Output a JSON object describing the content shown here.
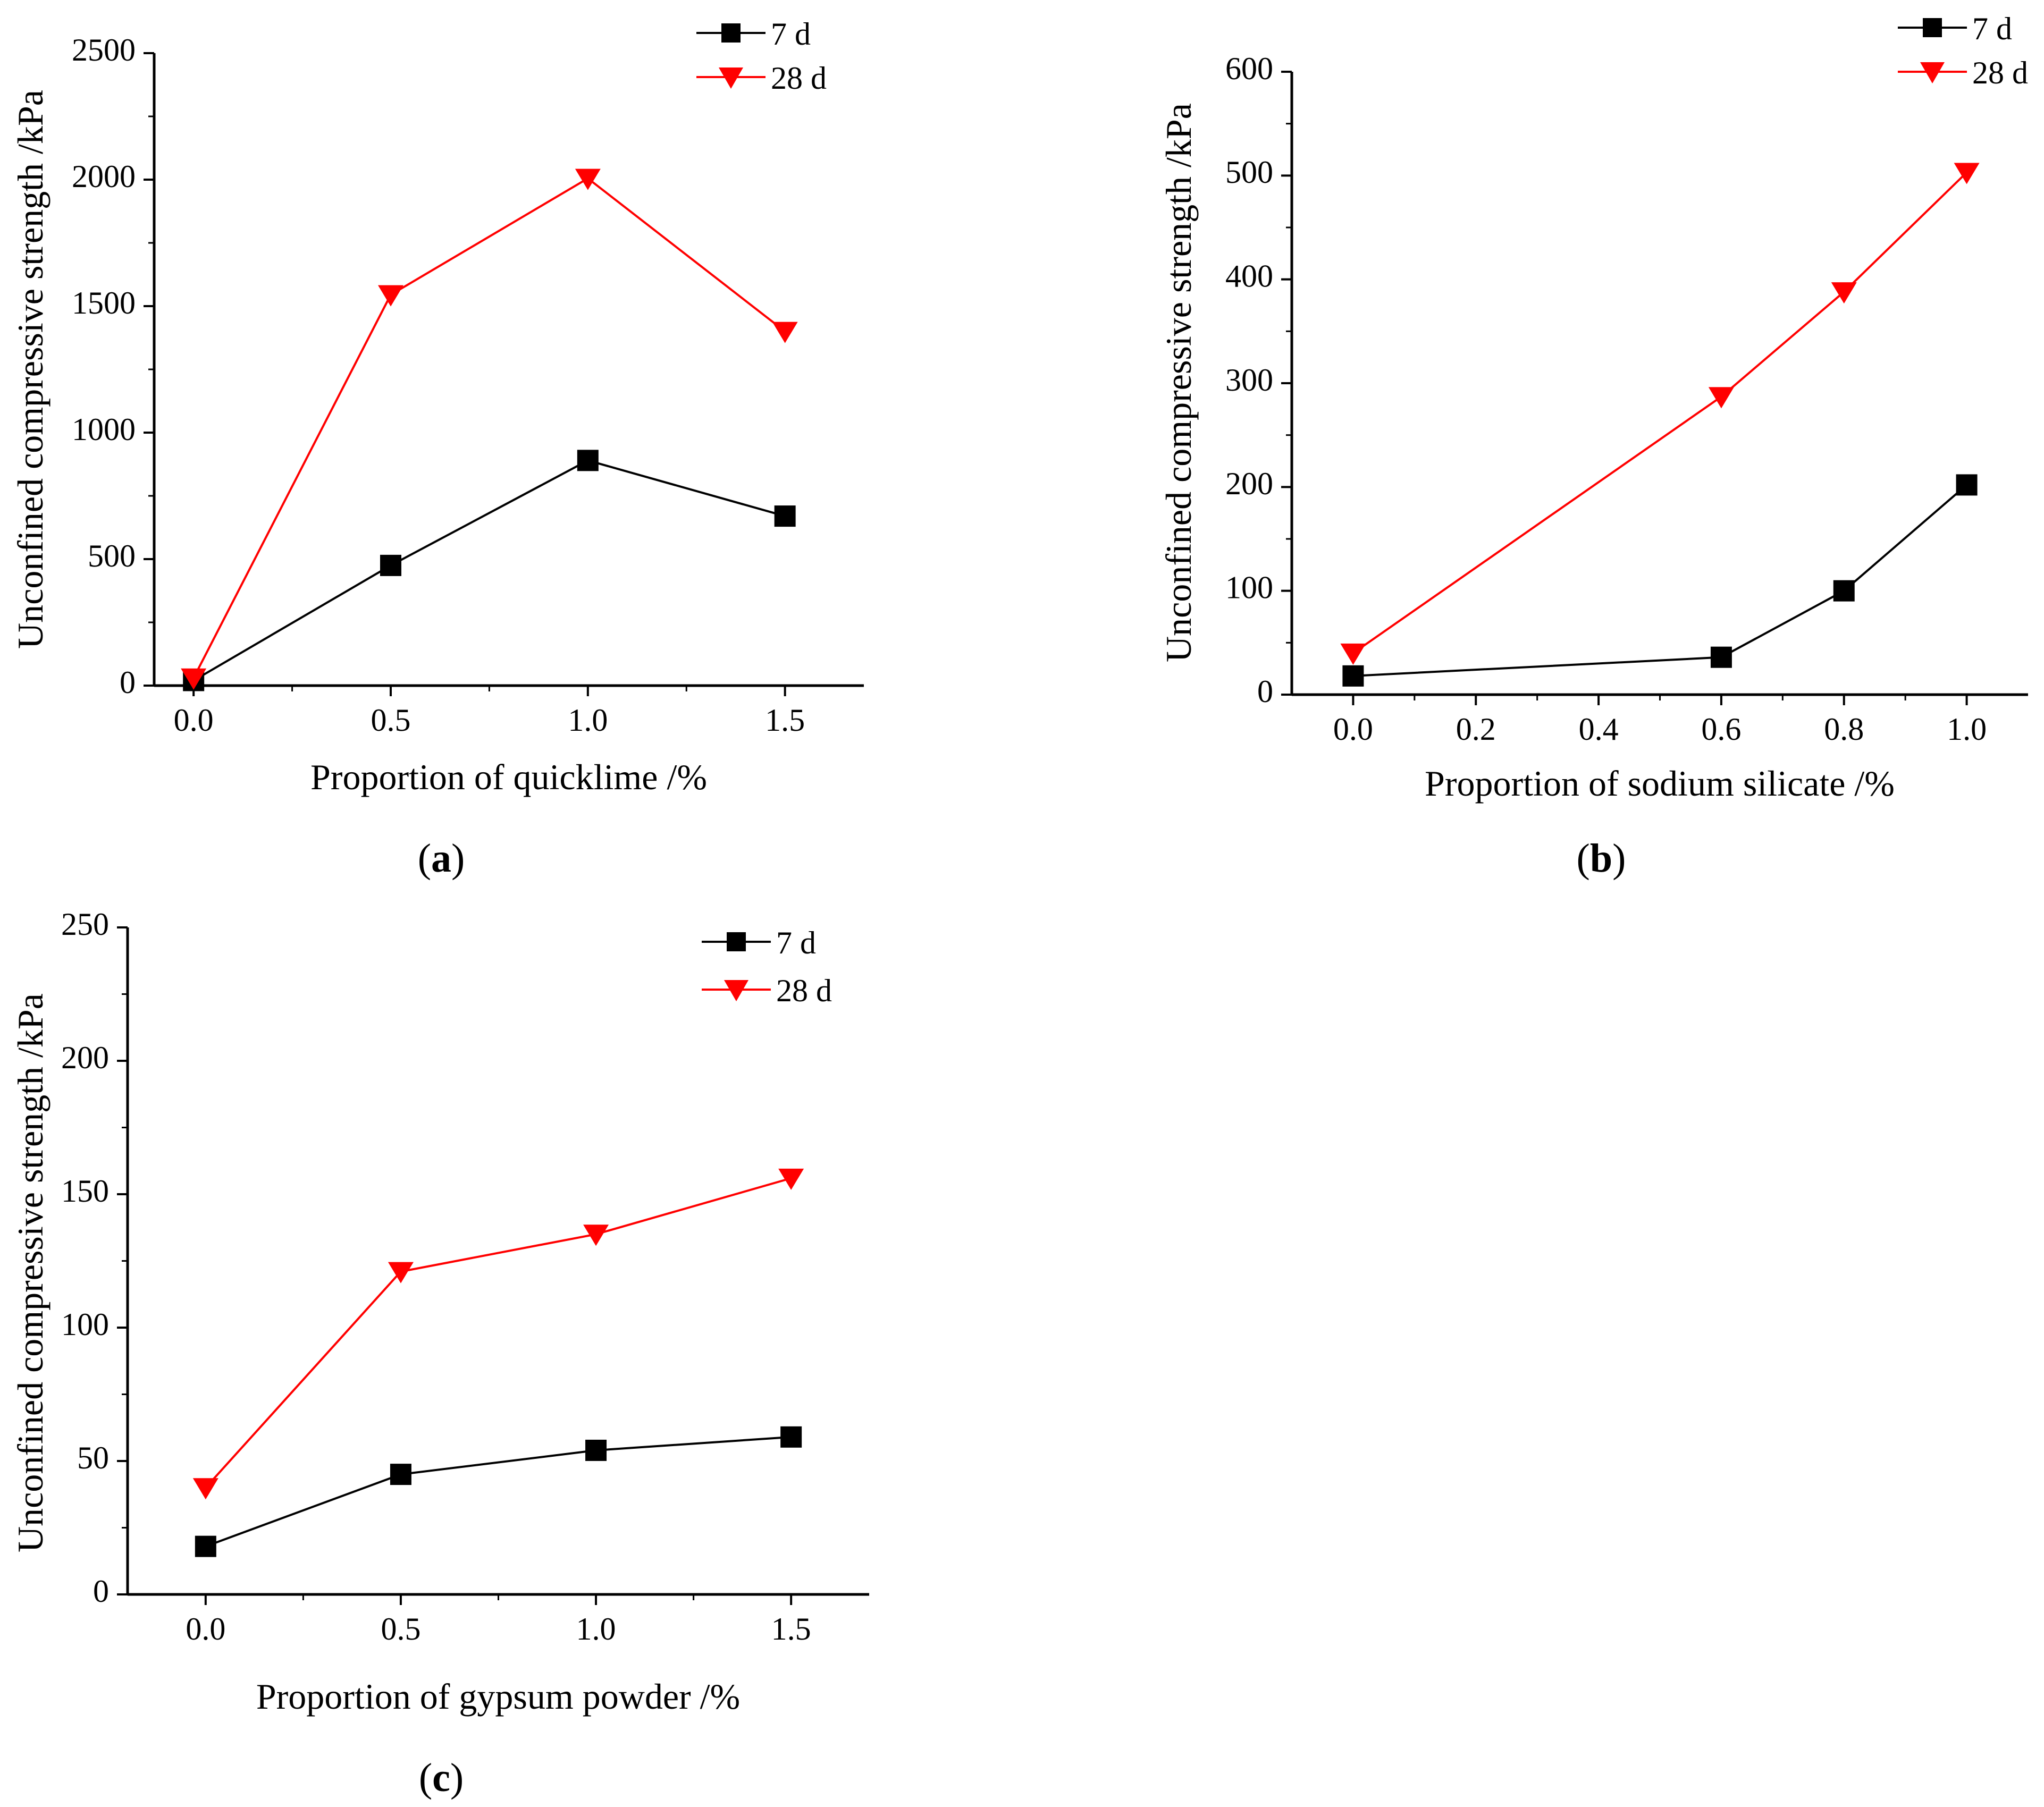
{
  "figure": {
    "captions": [
      {
        "open": "(",
        "letter": "a",
        "close": ")"
      },
      {
        "open": "(",
        "letter": "b",
        "close": ")"
      },
      {
        "open": "(",
        "letter": "c",
        "close": ")"
      }
    ]
  },
  "colors": {
    "series_7d": "#000000",
    "series_28d": "#ff0000",
    "axis": "#000000"
  },
  "chart_data": [
    {
      "type": "line",
      "panel": "a",
      "xlabel": "Proportion of quicklime /%",
      "ylabel": "Unconfined compressive strength /kPa",
      "xlim": [
        -0.1,
        1.7
      ],
      "ylim": [
        0,
        2500
      ],
      "xticks": [
        0.0,
        0.5,
        1.0,
        1.5
      ],
      "xtick_labels": [
        "0.0",
        "0.5",
        "1.0",
        "1.5"
      ],
      "yticks": [
        0,
        500,
        1000,
        1500,
        2000,
        2500
      ],
      "ytick_labels": [
        "0",
        "500",
        "1000",
        "1500",
        "2000",
        "2500"
      ],
      "legend_position": "top-right",
      "series": [
        {
          "name": "7 d",
          "marker": "square",
          "x": [
            0.0,
            0.5,
            1.0,
            1.5
          ],
          "values": [
            20,
            475,
            890,
            670
          ]
        },
        {
          "name": "28 d",
          "marker": "triangle-down",
          "x": [
            0.0,
            0.5,
            1.0,
            1.5
          ],
          "values": [
            30,
            1545,
            2005,
            1400
          ]
        }
      ]
    },
    {
      "type": "line",
      "panel": "b",
      "xlabel": "Proportion of sodium silicate /%",
      "ylabel": "Unconfined compressive strength /kPa",
      "xlim": [
        -0.1,
        1.1
      ],
      "ylim": [
        0,
        600
      ],
      "xticks": [
        0.0,
        0.2,
        0.4,
        0.6,
        0.8,
        1.0
      ],
      "xtick_labels": [
        "0.0",
        "0.2",
        "0.4",
        "0.6",
        "0.8",
        "1.0"
      ],
      "yticks": [
        0,
        100,
        200,
        300,
        400,
        500,
        600
      ],
      "ytick_labels": [
        "0",
        "100",
        "200",
        "300",
        "400",
        "500",
        "600"
      ],
      "legend_position": "top-right",
      "series": [
        {
          "name": "7 d",
          "marker": "square",
          "x": [
            0.0,
            0.6,
            0.8,
            1.0
          ],
          "values": [
            18,
            36,
            100,
            202
          ]
        },
        {
          "name": "28 d",
          "marker": "triangle-down",
          "x": [
            0.0,
            0.6,
            0.8,
            1.0
          ],
          "values": [
            40,
            287,
            388,
            503
          ]
        }
      ]
    },
    {
      "type": "line",
      "panel": "c",
      "xlabel": "Proportion of gypsum powder /%",
      "ylabel": "Unconfined compressive strength /kPa",
      "xlim": [
        -0.2,
        1.7
      ],
      "ylim": [
        0,
        250
      ],
      "xticks": [
        0.0,
        0.5,
        1.0,
        1.5
      ],
      "xtick_labels": [
        "0.0",
        "0.5",
        "1.0",
        "1.5"
      ],
      "yticks": [
        0,
        50,
        100,
        150,
        200,
        250
      ],
      "ytick_labels": [
        "0",
        "50",
        "100",
        "150",
        "200",
        "250"
      ],
      "legend_position": "top-right",
      "series": [
        {
          "name": "7 d",
          "marker": "square",
          "x": [
            0.0,
            0.5,
            1.0,
            1.5
          ],
          "values": [
            18,
            45,
            54,
            59
          ]
        },
        {
          "name": "28 d",
          "marker": "triangle-down",
          "x": [
            0.0,
            0.5,
            1.0,
            1.5
          ],
          "values": [
            40,
            121,
            135,
            156
          ]
        }
      ]
    }
  ]
}
